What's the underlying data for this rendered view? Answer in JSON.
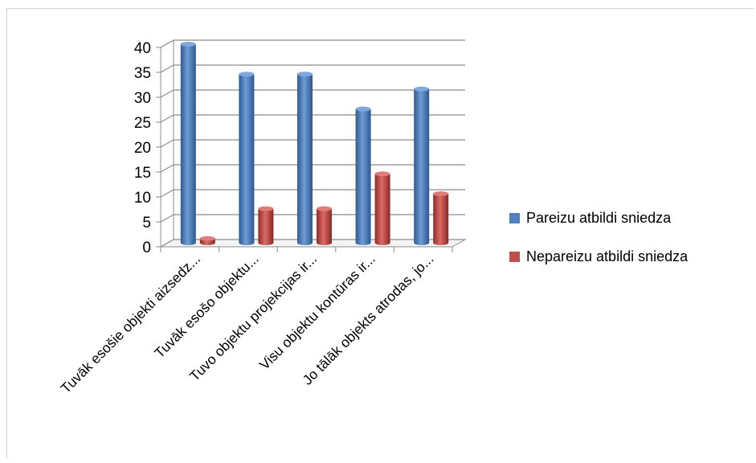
{
  "chart_data": {
    "type": "bar",
    "categories": [
      "Tuvāk esošie objekti aizsedz...",
      "Tuvāk esošo objektu...",
      "Tuvo objektu projekcijas ir...",
      "Visu objektu kontūras ir...",
      "Jo tālāk objekts atrodas, jo..."
    ],
    "series": [
      {
        "name": "Pareizu atbildi sniedza",
        "values": [
          40,
          34,
          34,
          27,
          31
        ],
        "color": "#4f81bd"
      },
      {
        "name": "Nepareizu atbildi sniedza",
        "values": [
          1,
          7,
          7,
          14,
          10
        ],
        "color": "#c0504d"
      }
    ],
    "yticks": [
      "0",
      "5",
      "10",
      "15",
      "20",
      "25",
      "30",
      "35",
      "40"
    ],
    "ylim": [
      0,
      40
    ],
    "grid": true,
    "legend_position": "right",
    "three_d": true
  }
}
